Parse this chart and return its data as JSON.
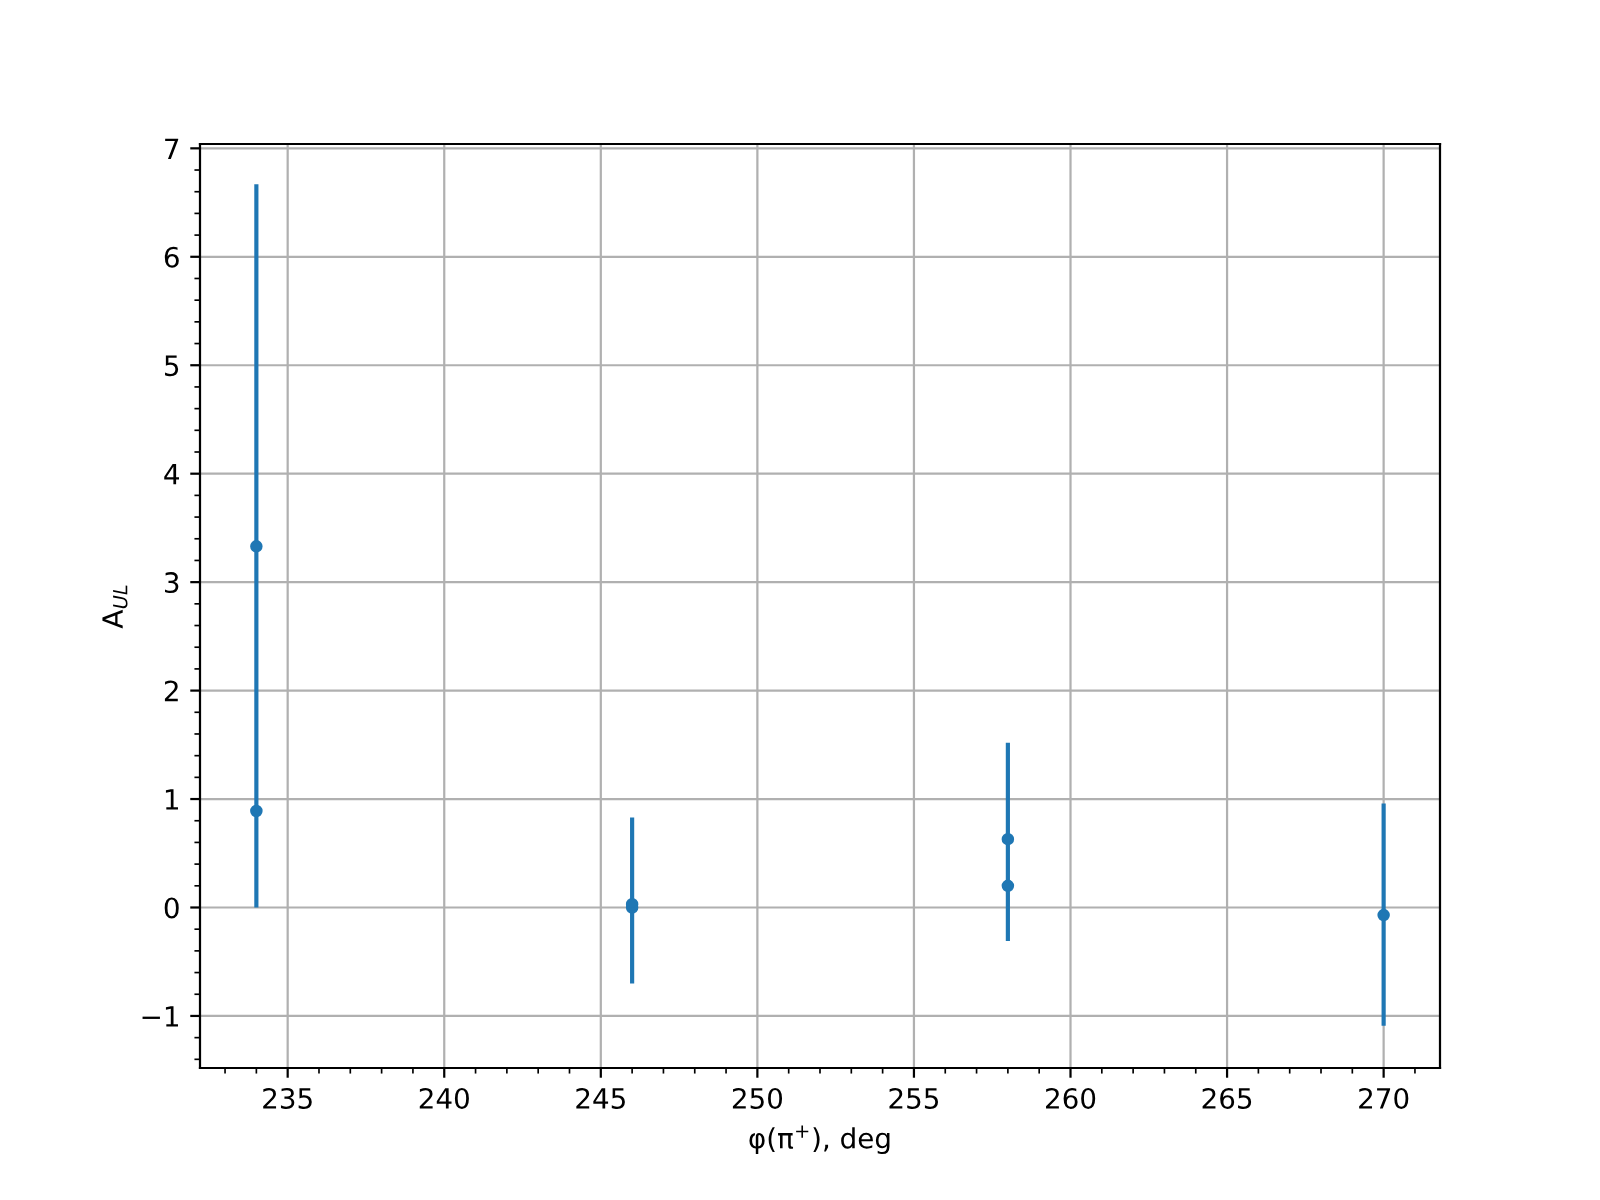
{
  "chart_data": {
    "type": "scatter",
    "xlabel": "φ(π$^{+}$), deg",
    "ylabel": "A$_{UL}$",
    "x": [
      234,
      246,
      258,
      270
    ],
    "series": [
      {
        "color": "#1f77b4",
        "values": [
          3.33,
          0.03,
          0.63,
          -0.07
        ],
        "errors": [
          [
            0.0,
            6.67
          ],
          [
            -0.7,
            0.83
          ],
          [
            -0.31,
            1.52
          ],
          [
            -1.09,
            0.96
          ]
        ]
      },
      {
        "color": "#1f77b4",
        "values": [
          0.89,
          0.0,
          0.2,
          null
        ]
      }
    ],
    "xlim": [
      232.2,
      271.8
    ],
    "xticks": [
      235,
      240,
      245,
      250,
      255,
      260,
      265,
      270
    ],
    "ylim": [
      -1.48,
      7.04
    ],
    "yticks": [
      {
        "value": -1,
        "label": "−1"
      },
      0,
      1,
      2,
      3,
      4,
      5,
      6,
      7
    ],
    "grid": true,
    "marker": "circle"
  }
}
